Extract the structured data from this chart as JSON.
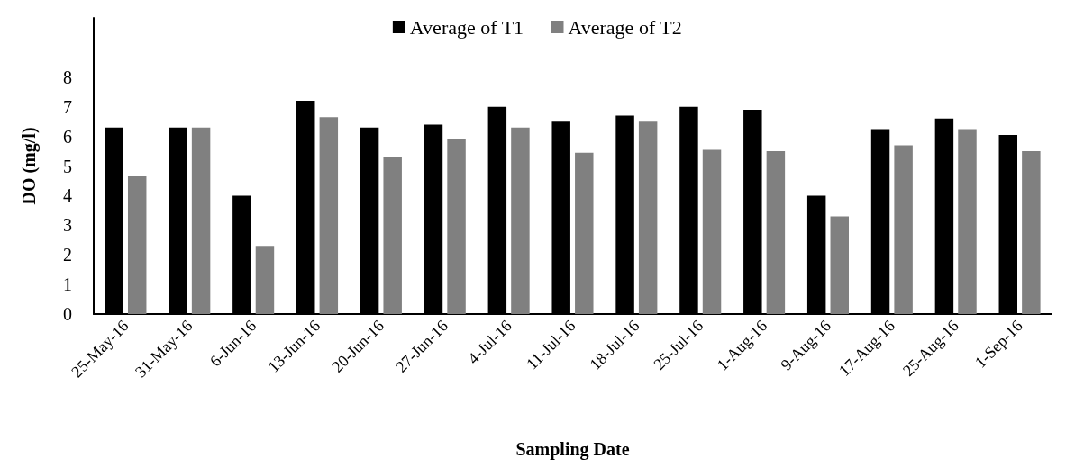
{
  "chart_data": {
    "type": "bar",
    "xlabel": "Sampling Date",
    "ylabel": "DO (mg/l)",
    "categories": [
      "25-May-16",
      "31-May-16",
      "6-Jun-16",
      "13-Jun-16",
      "20-Jun-16",
      "27-Jun-16",
      "4-Jul-16",
      "11-Jul-16",
      "18-Jul-16",
      "25-Jul-16",
      "1-Aug-16",
      "9-Aug-16",
      "17-Aug-16",
      "25-Aug-16",
      "1-Sep-16"
    ],
    "series": [
      {
        "name": "Average of T1",
        "color": "#000000",
        "values": [
          6.3,
          6.3,
          4.0,
          7.2,
          6.3,
          6.4,
          7.0,
          6.5,
          6.7,
          7.0,
          6.9,
          4.0,
          6.25,
          6.6,
          6.05
        ]
      },
      {
        "name": "Average of T2",
        "color": "#808080",
        "values": [
          4.65,
          6.3,
          2.3,
          6.65,
          5.3,
          5.9,
          6.3,
          5.45,
          6.5,
          5.55,
          5.5,
          3.3,
          5.7,
          6.25,
          5.5
        ]
      }
    ],
    "ylim": [
      0,
      10
    ],
    "yticks": [
      0,
      1,
      2,
      3,
      4,
      5,
      6,
      7,
      8
    ],
    "grid": false,
    "legend": "top"
  }
}
